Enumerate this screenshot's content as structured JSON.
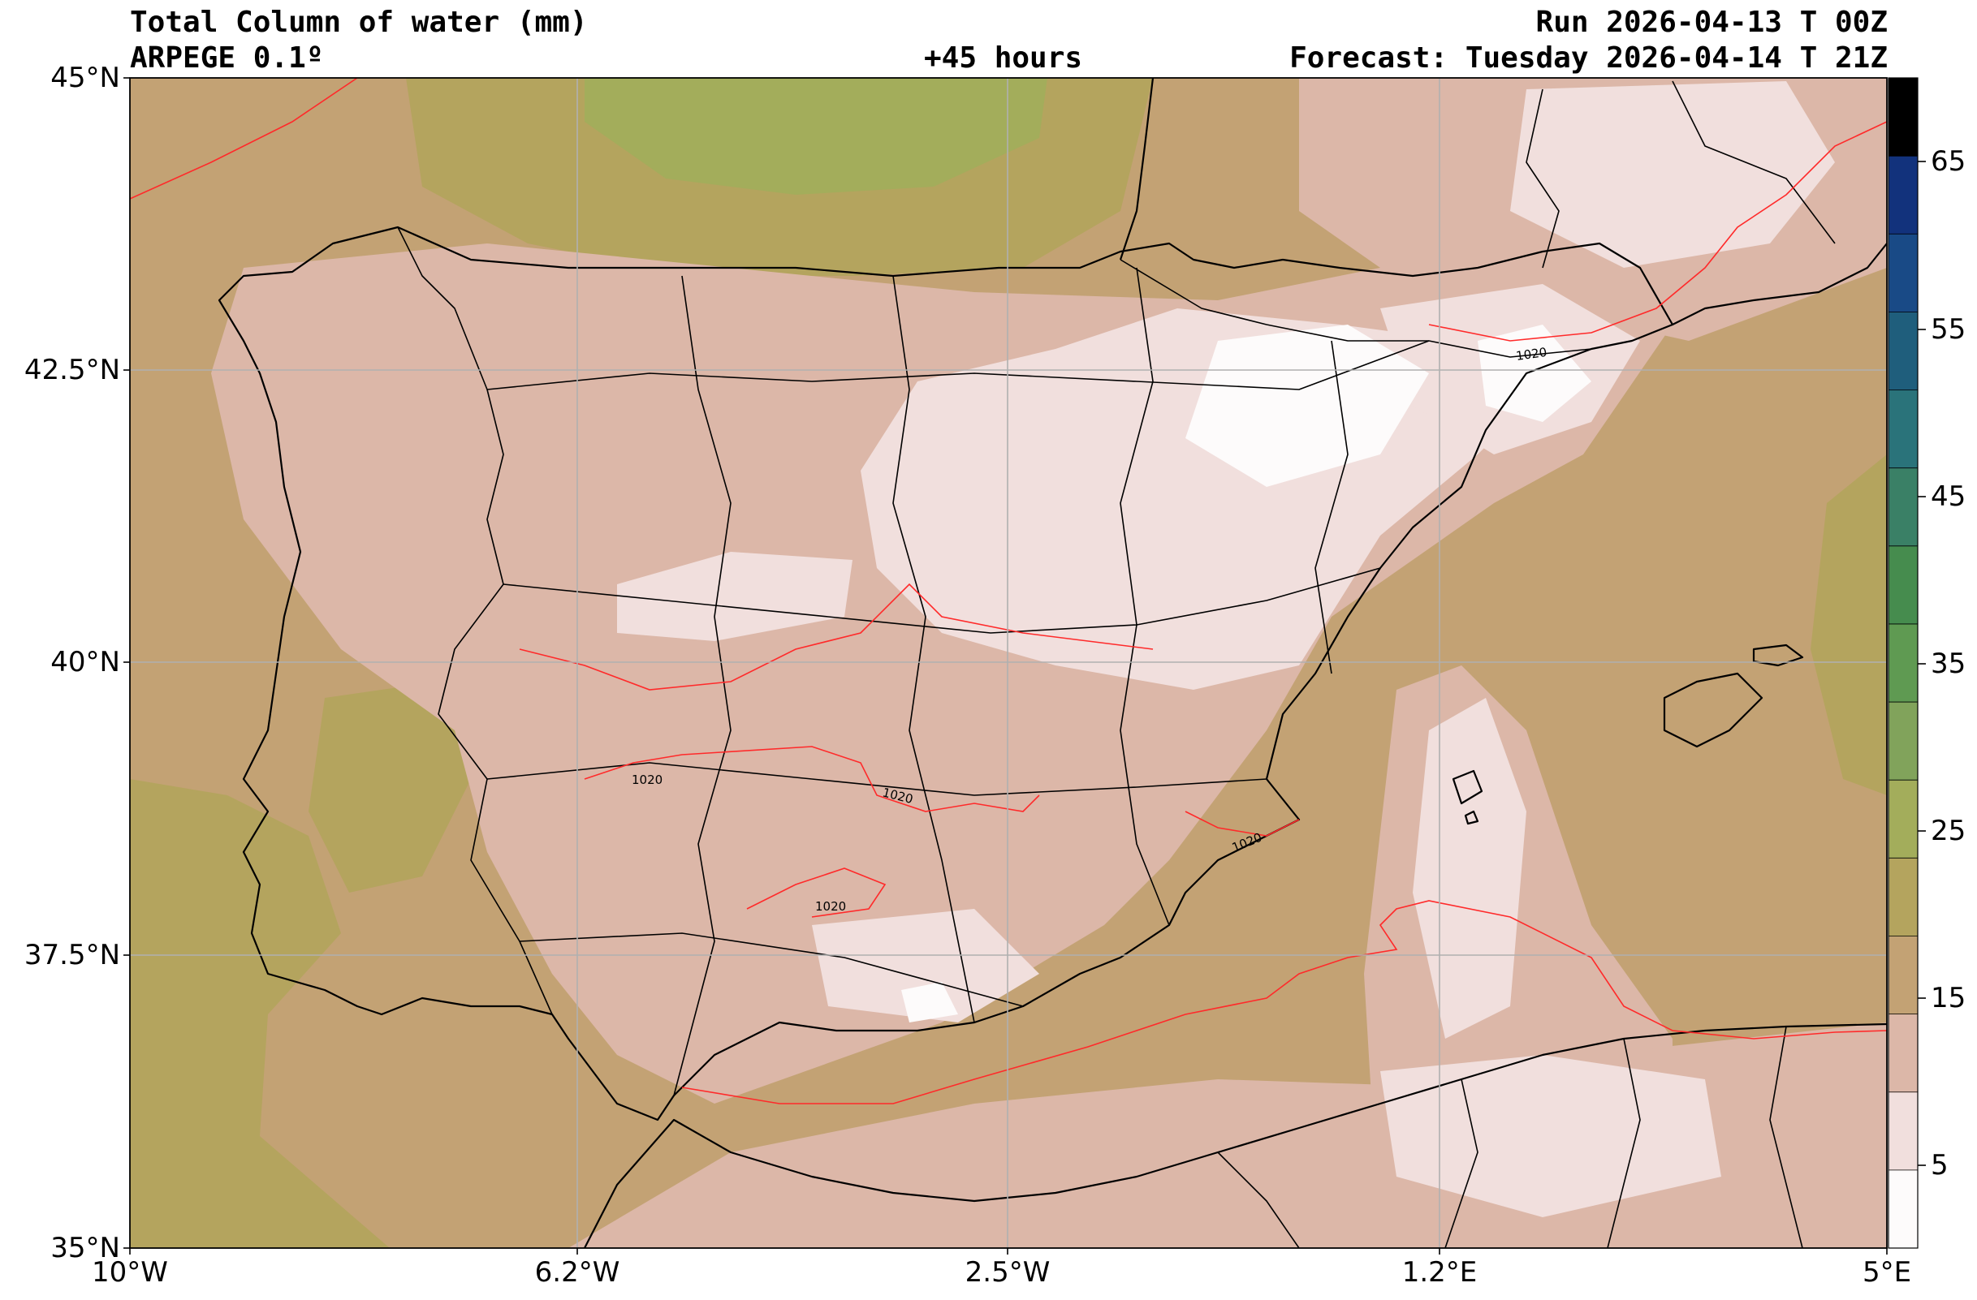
{
  "header": {
    "title": "Total Column of water (mm)",
    "model": "ARPEGE 0.1º",
    "lead_time": "+45 hours",
    "run": "Run 2026-04-13 T 00Z",
    "forecast": "Forecast: Tuesday 2026-04-14 T 21Z"
  },
  "map": {
    "lat_labels": [
      "45°N",
      "42.5°N",
      "40°N",
      "37.5°N",
      "35°N"
    ],
    "lon_labels": [
      "10°W",
      "6.2°W",
      "2.5°W",
      "1.2°E",
      "5°E"
    ],
    "isobar_labels": [
      "1020",
      "1020",
      "1020",
      "1020",
      "1020"
    ],
    "isobar_color": "#ff2a2a",
    "land_color": "#000000"
  },
  "colorbar": {
    "tick_labels": [
      "65",
      "55",
      "45",
      "35",
      "25",
      "15",
      "5"
    ],
    "colors": [
      "#fdfbfb",
      "#f1dfdd",
      "#dcb7a8",
      "#c3a274",
      "#b4a45e",
      "#a3ad5b",
      "#81a35b",
      "#5f9a52",
      "#468c4e",
      "#3a8066",
      "#2a737a",
      "#1f5e7c",
      "#194a86",
      "#12327c",
      "#000000"
    ]
  }
}
